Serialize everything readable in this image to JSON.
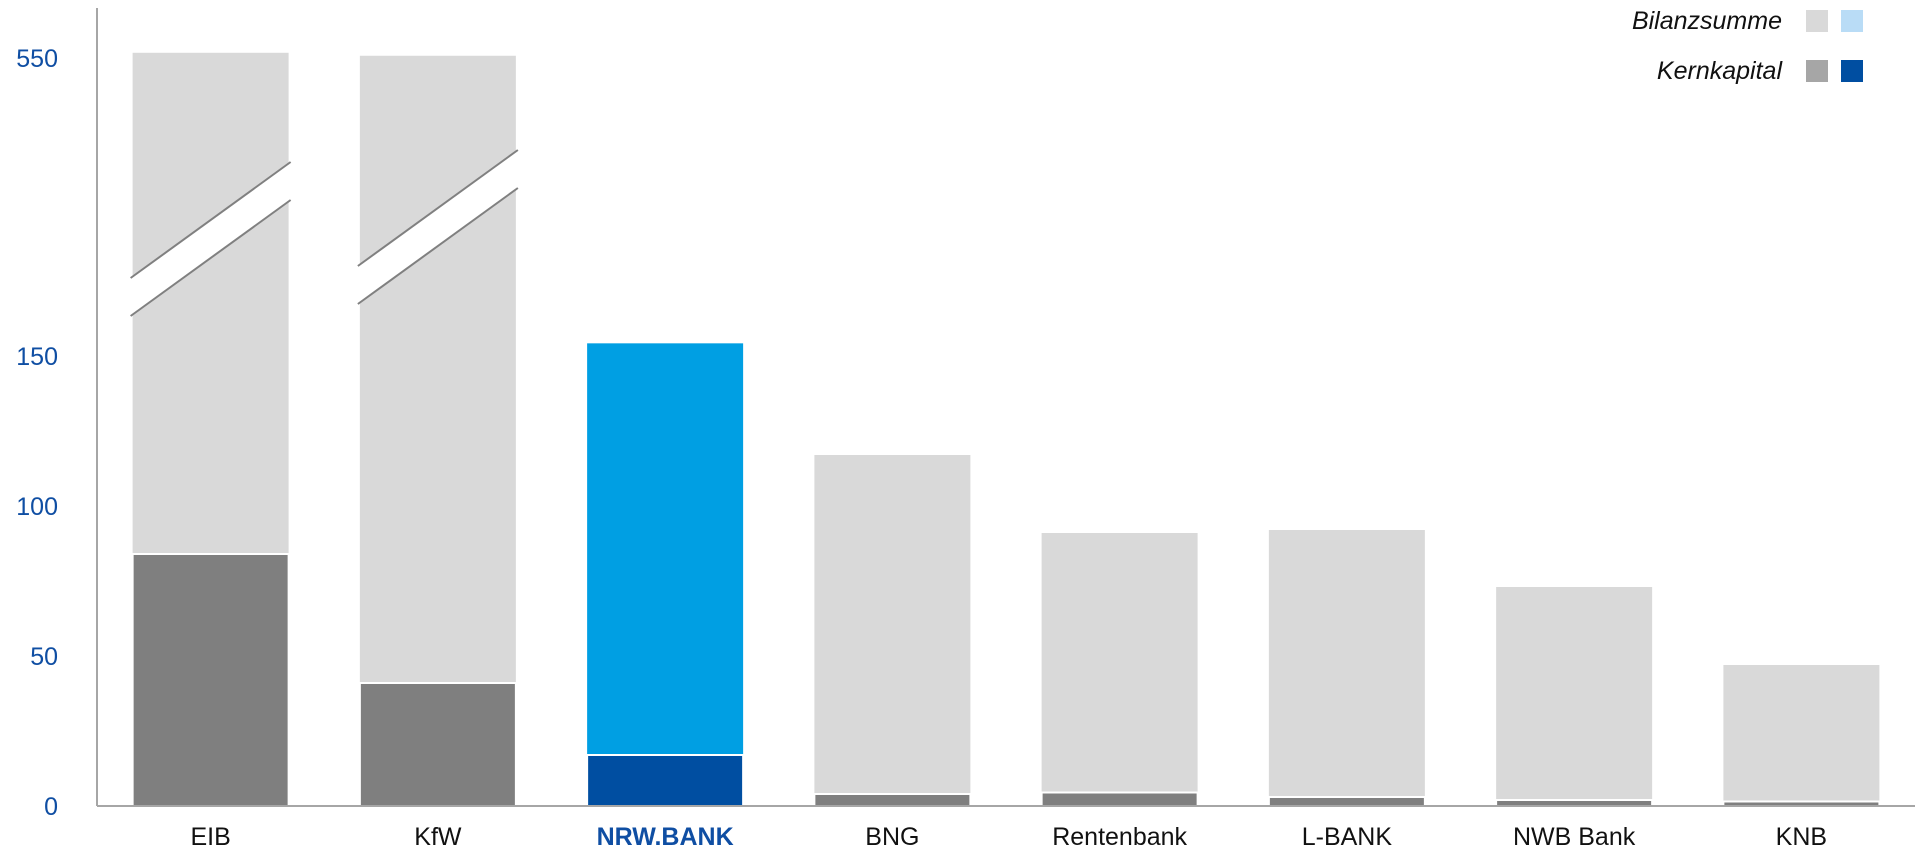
{
  "chart_data": {
    "type": "bar",
    "stacked": true,
    "broken_axis": true,
    "categories": [
      "EIB",
      "KfW",
      "NRW.BANK",
      "BNG",
      "Rentenbank",
      "L-BANK",
      "NWB Bank",
      "KNB"
    ],
    "highlight_category": "NRW.BANK",
    "yticks": [
      0,
      50,
      100,
      150,
      550
    ],
    "series": [
      {
        "name": "Kernkapital",
        "values": [
          84,
          41,
          17,
          4,
          4.5,
          3,
          2,
          1.5
        ]
      },
      {
        "name": "Bilanzsumme",
        "values": [
          557,
          553,
          167,
          117,
          91,
          92,
          73,
          47
        ]
      }
    ],
    "legend": {
      "position": "top-right",
      "entries": [
        {
          "label": "Bilanzsumme",
          "swatches": [
            "#d9d9d9",
            "#b9dcf6"
          ]
        },
        {
          "label": "Kernkapital",
          "swatches": [
            "#a6a6a6",
            "#004ea1"
          ]
        }
      ]
    },
    "colors": {
      "bilanz_other": "#d9d9d9",
      "bilanz_highlight": "#009fe3",
      "kern_other": "#7f7f7f",
      "kern_highlight": "#004ea1",
      "tick_text": "#0f4ea3"
    }
  }
}
